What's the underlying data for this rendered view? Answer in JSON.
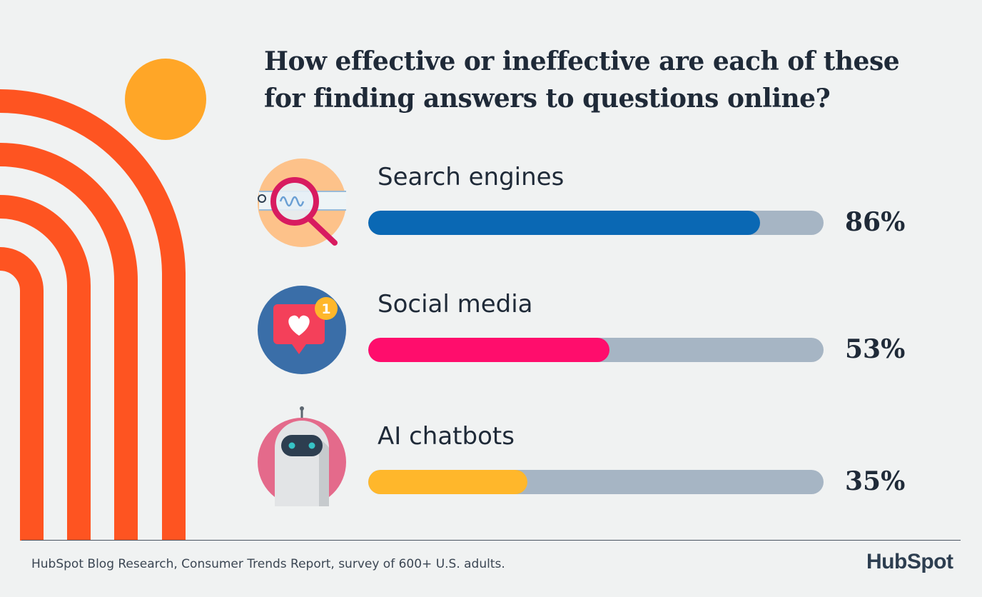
{
  "title_lines": [
    "How effective or ineffective are each of these",
    "for finding answers to questions online?"
  ],
  "chart_data": {
    "type": "bar",
    "orientation": "horizontal",
    "categories": [
      "Search engines",
      "Social media",
      "AI chatbots"
    ],
    "values": [
      86,
      53,
      35
    ],
    "value_labels": [
      "86%",
      "53%",
      "35%"
    ],
    "xlim": [
      0,
      100
    ],
    "colors": [
      "#0a68b4",
      "#ff0d6c",
      "#ffb72b"
    ],
    "track_color": "#a6b5c4",
    "icons": [
      "magnifying-glass-icon",
      "heart-notification-icon",
      "robot-icon"
    ],
    "notification_count": "1"
  },
  "footer": {
    "source": "HubSpot Blog Research, Consumer Trends Report, survey of 600+ U.S. adults."
  },
  "brand": {
    "logo_text": "HubSpot",
    "color": "#ff5c35"
  }
}
